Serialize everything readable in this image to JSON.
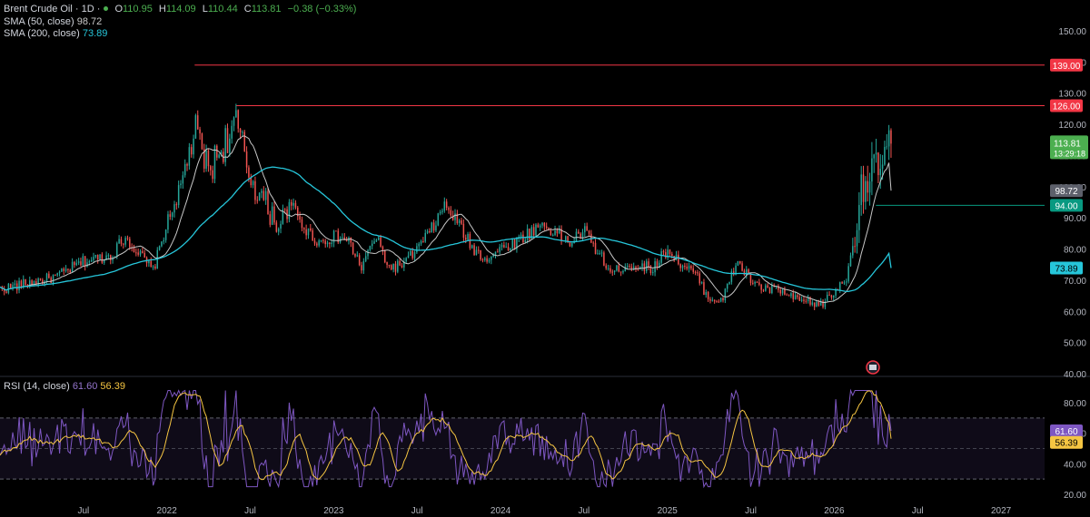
{
  "instrument": {
    "name": "Brent Crude Oil · 1D ·",
    "ohlc": {
      "o_label": "O",
      "o": "110.95",
      "h_label": "H",
      "h": "114.09",
      "l_label": "L",
      "l": "110.44",
      "c_label": "C",
      "c": "113.81",
      "change": "−0.38 (−0.33%)"
    }
  },
  "indicators": {
    "sma50": {
      "label": "SMA (50, close)",
      "value": "98.72"
    },
    "sma200": {
      "label": "SMA (200, close)",
      "value": "73.89"
    },
    "rsi": {
      "label": "RSI (14, close)",
      "value": "61.60",
      "ma_value": "56.39"
    }
  },
  "colors": {
    "background": "#000000",
    "up": "#26a69a",
    "down": "#ef5350",
    "sma50": "#c8c8c8",
    "sma200": "#26c6da",
    "resistance": "#f23645",
    "support": "#089981",
    "rsi": "#7e57c2",
    "rsi_ma": "#f5c542",
    "price_tag": "#4caf50"
  },
  "chart_data": [
    {
      "type": "candlestick",
      "title": "Brent Crude Oil · 1D",
      "ylim": [
        40,
        150
      ],
      "y_ticks": [
        "150.00",
        "140.00",
        "130.00",
        "120.00",
        "110.00",
        "100.00",
        "90.00",
        "80.00",
        "70.00",
        "60.00",
        "50.00",
        "40.00"
      ],
      "x_ticks": [
        "Jul",
        "2022",
        "Jul",
        "2023",
        "Jul",
        "2024",
        "Jul",
        "2025",
        "Jul",
        "2026",
        "Jul",
        "2027"
      ],
      "x_tick_dates": [
        "2021-07",
        "2022-01",
        "2022-07",
        "2023-01",
        "2023-07",
        "2024-01",
        "2024-07",
        "2025-01",
        "2025-07",
        "2026-01",
        "2026-07",
        "2027-01"
      ],
      "price_anchors": [
        [
          "2021-01",
          67
        ],
        [
          "2021-03",
          69
        ],
        [
          "2021-05",
          71
        ],
        [
          "2021-07",
          76
        ],
        [
          "2021-09",
          78
        ],
        [
          "2021-10",
          84
        ],
        [
          "2021-12",
          73
        ],
        [
          "2022-01",
          88
        ],
        [
          "2022-02",
          100
        ],
        [
          "2022-03",
          118
        ],
        [
          "2022-04",
          105
        ],
        [
          "2022-05",
          113
        ],
        [
          "2022-06",
          120
        ],
        [
          "2022-07",
          103
        ],
        [
          "2022-08",
          95
        ],
        [
          "2022-09",
          88
        ],
        [
          "2022-10",
          94
        ],
        [
          "2022-11",
          86
        ],
        [
          "2022-12",
          82
        ],
        [
          "2023-01",
          84
        ],
        [
          "2023-02",
          83
        ],
        [
          "2023-03",
          74
        ],
        [
          "2023-04",
          84
        ],
        [
          "2023-05",
          74
        ],
        [
          "2023-06",
          75
        ],
        [
          "2023-07",
          80
        ],
        [
          "2023-08",
          86
        ],
        [
          "2023-09",
          94
        ],
        [
          "2023-10",
          88
        ],
        [
          "2023-11",
          80
        ],
        [
          "2023-12",
          77
        ],
        [
          "2024-01",
          80
        ],
        [
          "2024-02",
          82
        ],
        [
          "2024-04",
          88
        ],
        [
          "2024-06",
          82
        ],
        [
          "2024-07",
          86
        ],
        [
          "2024-08",
          79
        ],
        [
          "2024-09",
          72
        ],
        [
          "2024-10",
          75
        ],
        [
          "2024-12",
          74
        ],
        [
          "2025-01",
          80
        ],
        [
          "2025-02",
          75
        ],
        [
          "2025-03",
          72
        ],
        [
          "2025-04",
          64
        ],
        [
          "2025-05",
          64
        ],
        [
          "2025-06",
          76
        ],
        [
          "2025-07",
          70
        ],
        [
          "2025-08",
          67
        ],
        [
          "2025-09",
          67
        ],
        [
          "2025-10",
          64
        ],
        [
          "2025-11",
          63
        ],
        [
          "2025-12",
          62
        ],
        [
          "2026-01",
          66
        ],
        [
          "2026-02",
          72
        ],
        [
          "2026-03",
          102
        ],
        [
          "2026-04",
          104
        ],
        [
          "2026-05",
          113.81
        ]
      ],
      "series": [
        {
          "name": "SMA (50, close)",
          "last": 98.72
        },
        {
          "name": "SMA (200, close)",
          "last": 73.89
        }
      ],
      "annotations": [
        {
          "type": "horizontal-line",
          "value": 139.0,
          "label": "139.00",
          "from": "2022-03"
        },
        {
          "type": "horizontal-line",
          "value": 126.0,
          "label": "126.00",
          "from": "2022-06"
        },
        {
          "type": "horizontal-line",
          "value": 94.0,
          "label": "94.00",
          "from": "2026-04"
        }
      ],
      "last_price": {
        "value": "113.81",
        "countdown": "13:29:18"
      },
      "sma50_tag": "98.72",
      "sma200_tag": "73.89"
    },
    {
      "type": "line",
      "title": "RSI (14, close)",
      "ylim": [
        20,
        90
      ],
      "y_ticks": [
        "80.00",
        "60.00",
        "40.00",
        "20.00"
      ],
      "band": [
        30,
        70
      ],
      "midline": 50,
      "series": [
        {
          "name": "RSI",
          "last": 61.6
        },
        {
          "name": "RSI-based MA",
          "last": 56.39
        }
      ]
    }
  ]
}
